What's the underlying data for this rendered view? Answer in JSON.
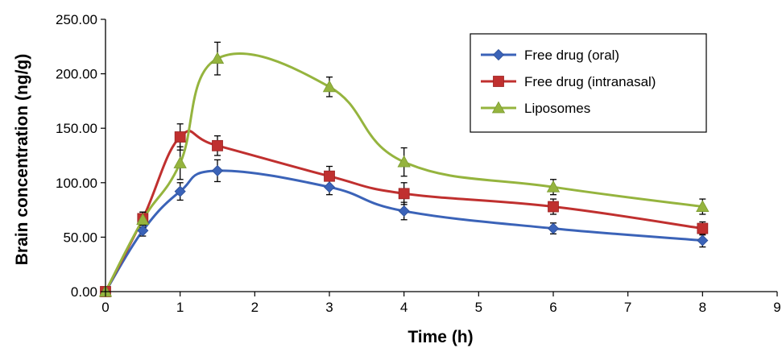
{
  "chart_data": {
    "type": "line",
    "title": "",
    "xlabel": "Time (h)",
    "ylabel": "Brain concentration (ng/g)",
    "xlim": [
      0,
      9
    ],
    "ylim": [
      0,
      250
    ],
    "xticks": [
      "0",
      "1",
      "2",
      "3",
      "4",
      "5",
      "6",
      "7",
      "8",
      "9"
    ],
    "yticks": [
      "0.00",
      "50.00",
      "100.00",
      "150.00",
      "200.00",
      "250.00"
    ],
    "grid": false,
    "legend_position": "top-right",
    "series": [
      {
        "name": "Free drug (oral)",
        "color": "#3b63b8",
        "marker": "diamond",
        "x": [
          0,
          0.5,
          1,
          1.5,
          3,
          4,
          6,
          8
        ],
        "y": [
          0,
          56,
          92,
          111,
          96,
          74,
          58,
          47
        ],
        "err": [
          0,
          5,
          8,
          10,
          7,
          8,
          5,
          6
        ]
      },
      {
        "name": "Free drug (intranasal)",
        "color": "#c0302f",
        "marker": "square",
        "x": [
          0,
          0.5,
          1,
          1.5,
          3,
          4,
          6,
          8
        ],
        "y": [
          0,
          67,
          142,
          134,
          106,
          90,
          78,
          58
        ],
        "err": [
          0,
          6,
          12,
          9,
          9,
          10,
          7,
          6
        ]
      },
      {
        "name": "Liposomes",
        "color": "#95b43e",
        "marker": "triangle",
        "x": [
          0,
          0.5,
          1,
          1.5,
          3,
          4,
          6,
          8
        ],
        "y": [
          0,
          66,
          118,
          214,
          188,
          119,
          96,
          78
        ],
        "err": [
          0,
          7,
          15,
          15,
          9,
          13,
          7,
          7
        ]
      }
    ]
  }
}
